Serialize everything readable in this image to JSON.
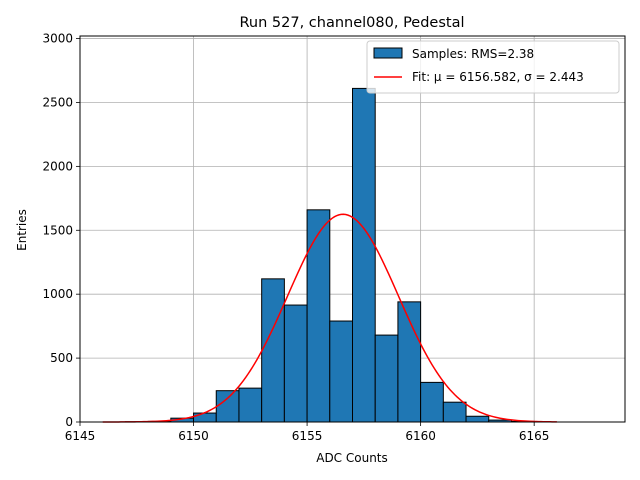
{
  "chart_data": {
    "type": "bar",
    "title": "Run 527, channel080, Pedestal",
    "xlabel": "ADC Counts",
    "ylabel": "Entries",
    "xlim": [
      6145,
      6169
    ],
    "ylim": [
      0,
      3020
    ],
    "xticks": [
      "6145",
      "6150",
      "6155",
      "6160",
      "6165"
    ],
    "yticks": [
      "0",
      "500",
      "1000",
      "1500",
      "2000",
      "2500",
      "3000"
    ],
    "grid": true,
    "legend_position": "top-right",
    "histogram": {
      "name": "Samples: RMS=2.38",
      "color": "#1f77b4",
      "bin_edges": [
        6146,
        6147,
        6148,
        6149,
        6150,
        6151,
        6152,
        6153,
        6154,
        6155,
        6156,
        6157,
        6158,
        6159,
        6160,
        6161,
        6162,
        6163,
        6164,
        6165,
        6166
      ],
      "counts": [
        0,
        2,
        5,
        30,
        70,
        245,
        265,
        1120,
        915,
        1660,
        790,
        2610,
        680,
        940,
        310,
        155,
        45,
        15,
        5,
        0
      ]
    },
    "fit": {
      "name": "Fit: μ = 6156.582, σ = 2.443",
      "color": "#ff0000",
      "mu": 6156.582,
      "sigma": 2.443,
      "amplitude": 1625,
      "x_range": [
        6146,
        6166
      ]
    }
  }
}
